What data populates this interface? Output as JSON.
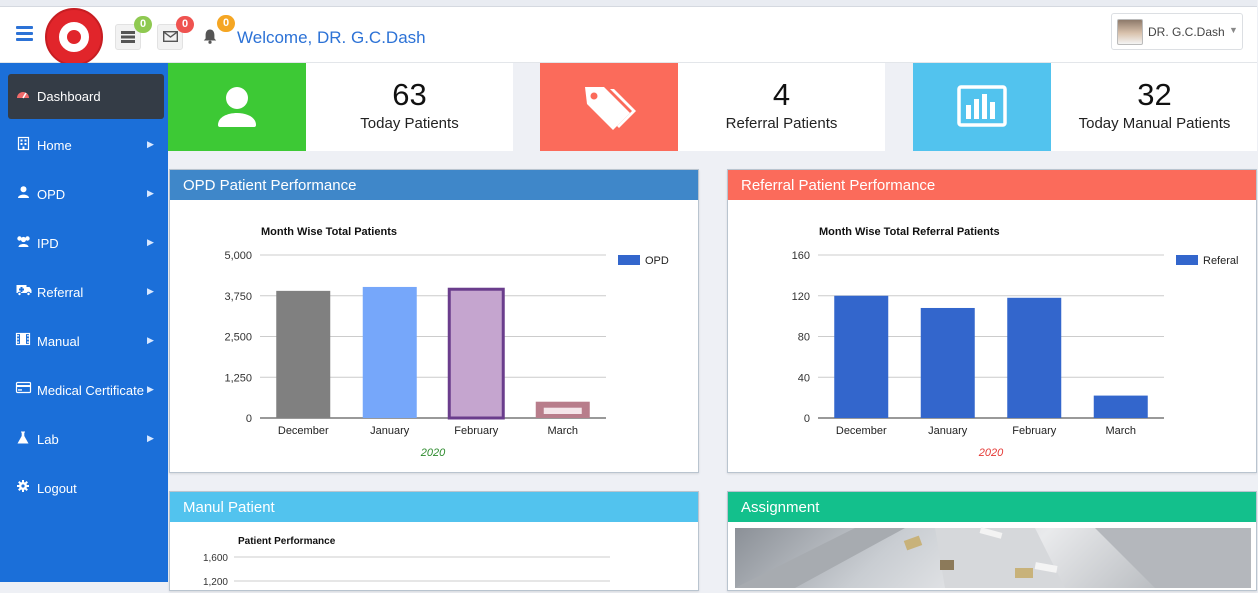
{
  "header": {
    "welcome": "Welcome, DR. G.C.Dash",
    "badges": {
      "tasks": "0",
      "messages": "0",
      "notifications": "0"
    },
    "badge_colors": {
      "tasks": "#8fc951",
      "messages": "#ef5350",
      "notifications": "#f5a623"
    },
    "user_name": "DR. G.C.Dash",
    "logo": "indian-railways-logo"
  },
  "sidebar": {
    "items": [
      {
        "label": "Dashboard",
        "icon": "tachometer-icon",
        "has_arrow": false
      },
      {
        "label": "Home",
        "icon": "building-icon",
        "has_arrow": true
      },
      {
        "label": "OPD",
        "icon": "user-icon",
        "has_arrow": true
      },
      {
        "label": "IPD",
        "icon": "users-icon",
        "has_arrow": true
      },
      {
        "label": "Referral",
        "icon": "ambulance-icon",
        "has_arrow": true
      },
      {
        "label": "Manual",
        "icon": "film-icon",
        "has_arrow": true
      },
      {
        "label": "Medical Certificate",
        "icon": "credit-card-icon",
        "has_arrow": true
      },
      {
        "label": "Lab",
        "icon": "flask-icon",
        "has_arrow": true
      },
      {
        "label": "Logout",
        "icon": "gear-icon",
        "has_arrow": false
      }
    ]
  },
  "stats": [
    {
      "value": "63",
      "label": "Today Patients",
      "icon": "user-icon",
      "color": "#3dc935"
    },
    {
      "value": "4",
      "label": "Referral Patients",
      "icon": "tags-icon",
      "color": "#fb6b5b"
    },
    {
      "value": "32",
      "label": "Today Manual Patients",
      "icon": "bar-chart-icon",
      "color": "#52c3ee"
    }
  ],
  "panels": {
    "opd": {
      "title": "OPD Patient Performance",
      "color": "#3f87c9"
    },
    "referral": {
      "title": "Referral Patient Performance",
      "color": "#fb6b5b"
    },
    "manual": {
      "title": "Manul Patient",
      "color": "#52c3ee"
    },
    "assignment": {
      "title": "Assignment",
      "color": "#13c08c"
    }
  },
  "chart_data": [
    {
      "type": "bar",
      "title": "Month Wise Total Patients",
      "xlabel": "2020",
      "ylabel": "",
      "categories": [
        "December",
        "January",
        "February",
        "March"
      ],
      "series": [
        {
          "name": "OPD",
          "values": [
            3900,
            4020,
            3950,
            500
          ]
        }
      ],
      "bar_colors": [
        "#808080",
        "#76a7fa",
        "#c5a5cf",
        "#b87d8b"
      ],
      "ylim": [
        0,
        5000
      ],
      "yticks": [
        "5,000",
        "3,750",
        "2,500",
        "1,250",
        "0"
      ],
      "legend": "right",
      "grid": true
    },
    {
      "type": "bar",
      "title": "Month Wise Total Referral Patients",
      "xlabel": "2020",
      "ylabel": "",
      "categories": [
        "December",
        "January",
        "February",
        "March"
      ],
      "series": [
        {
          "name": "Referal",
          "values": [
            120,
            108,
            118,
            22
          ]
        }
      ],
      "bar_colors": [
        "#3366cc",
        "#3366cc",
        "#3366cc",
        "#3366cc"
      ],
      "ylim": [
        0,
        160
      ],
      "yticks": [
        "160",
        "120",
        "80",
        "40",
        "0"
      ],
      "legend": "right",
      "grid": true
    },
    {
      "type": "line",
      "title": "Patient Performance",
      "categories": [],
      "series": [],
      "yticks": [
        "1,600",
        "1,200"
      ],
      "grid": true
    }
  ]
}
